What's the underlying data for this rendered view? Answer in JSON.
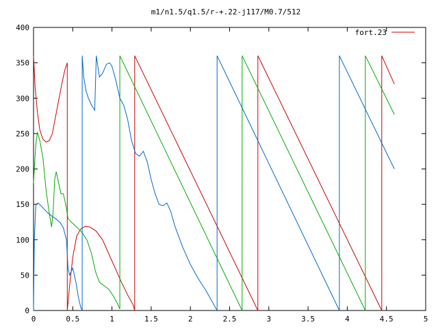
{
  "chart_data": {
    "type": "line",
    "title": "m1/n1.5/q1.5/r-+.22-j117/M0.7/512",
    "xlabel": "",
    "ylabel": "",
    "xlim": [
      0,
      5
    ],
    "ylim": [
      0,
      400
    ],
    "grid": false,
    "legend_position": "top-right",
    "xticks": [
      0,
      0.5,
      1,
      1.5,
      2,
      2.5,
      3,
      3.5,
      4,
      4.5,
      5
    ],
    "xtick_labels": [
      "0",
      "0.5",
      "1",
      "1.5",
      "2",
      "2.5",
      "3",
      "3.5",
      "4",
      "4.5",
      "5"
    ],
    "yticks": [
      0,
      50,
      100,
      150,
      200,
      250,
      300,
      350,
      400
    ],
    "ytick_labels": [
      "0",
      "50",
      "100",
      "150",
      "200",
      "250",
      "300",
      "350",
      "400"
    ],
    "series": [
      {
        "name": "fort.23",
        "color": "#cc0000",
        "points": [
          [
            0,
            360
          ],
          [
            0.02,
            315
          ],
          [
            0.05,
            280
          ],
          [
            0.08,
            255
          ],
          [
            0.12,
            242
          ],
          [
            0.16,
            238
          ],
          [
            0.2,
            240
          ],
          [
            0.24,
            250
          ],
          [
            0.3,
            285
          ],
          [
            0.36,
            320
          ],
          [
            0.4,
            340
          ],
          [
            0.43,
            350
          ],
          [
            0.43,
            0
          ],
          [
            0.46,
            35
          ],
          [
            0.5,
            75
          ],
          [
            0.55,
            105
          ],
          [
            0.6,
            115
          ],
          [
            0.66,
            119
          ],
          [
            0.72,
            118
          ],
          [
            0.8,
            112
          ],
          [
            0.88,
            100
          ],
          [
            0.96,
            80
          ],
          [
            1.04,
            60
          ],
          [
            1.12,
            40
          ],
          [
            1.2,
            22
          ],
          [
            1.27,
            8
          ],
          [
            1.29,
            0
          ],
          [
            1.29,
            360
          ],
          [
            2.86,
            0
          ],
          [
            2.86,
            360
          ],
          [
            4.44,
            0
          ],
          [
            4.44,
            360
          ],
          [
            4.6,
            320
          ]
        ]
      },
      {
        "name": "",
        "color": "#00aa00",
        "points": [
          [
            0,
            180
          ],
          [
            0.01,
            200
          ],
          [
            0.03,
            235
          ],
          [
            0.05,
            252
          ],
          [
            0.08,
            240
          ],
          [
            0.12,
            215
          ],
          [
            0.16,
            170
          ],
          [
            0.2,
            138
          ],
          [
            0.23,
            118
          ],
          [
            0.25,
            140
          ],
          [
            0.27,
            185
          ],
          [
            0.29,
            196
          ],
          [
            0.32,
            180
          ],
          [
            0.35,
            165
          ],
          [
            0.38,
            165
          ],
          [
            0.41,
            150
          ],
          [
            0.44,
            130
          ],
          [
            0.48,
            125
          ],
          [
            0.55,
            118
          ],
          [
            0.62,
            110
          ],
          [
            0.68,
            100
          ],
          [
            0.74,
            80
          ],
          [
            0.79,
            55
          ],
          [
            0.84,
            40
          ],
          [
            0.9,
            35
          ],
          [
            0.96,
            30
          ],
          [
            1.02,
            20
          ],
          [
            1.07,
            10
          ],
          [
            1.1,
            2
          ],
          [
            1.1,
            360
          ],
          [
            2.66,
            0
          ],
          [
            2.66,
            360
          ],
          [
            4.23,
            0
          ],
          [
            4.23,
            360
          ],
          [
            4.6,
            277
          ]
        ]
      },
      {
        "name": "",
        "color": "#0066cc",
        "points": [
          [
            0,
            0
          ],
          [
            0.01,
            100
          ],
          [
            0.03,
            150
          ],
          [
            0.06,
            152
          ],
          [
            0.12,
            145
          ],
          [
            0.18,
            138
          ],
          [
            0.24,
            133
          ],
          [
            0.3,
            128
          ],
          [
            0.34,
            124
          ],
          [
            0.38,
            117
          ],
          [
            0.42,
            100
          ],
          [
            0.44,
            60
          ],
          [
            0.46,
            50
          ],
          [
            0.5,
            60
          ],
          [
            0.54,
            40
          ],
          [
            0.57,
            20
          ],
          [
            0.6,
            5
          ],
          [
            0.62,
            0
          ],
          [
            0.62,
            360
          ],
          [
            0.64,
            330
          ],
          [
            0.67,
            310
          ],
          [
            0.7,
            300
          ],
          [
            0.74,
            290
          ],
          [
            0.78,
            283
          ],
          [
            0.8,
            360
          ],
          [
            0.84,
            330
          ],
          [
            0.88,
            335
          ],
          [
            0.93,
            348
          ],
          [
            0.97,
            350
          ],
          [
            1.0,
            345
          ],
          [
            1.05,
            325
          ],
          [
            1.1,
            300
          ],
          [
            1.15,
            290
          ],
          [
            1.2,
            270
          ],
          [
            1.25,
            240
          ],
          [
            1.3,
            222
          ],
          [
            1.35,
            218
          ],
          [
            1.4,
            225
          ],
          [
            1.45,
            210
          ],
          [
            1.5,
            185
          ],
          [
            1.55,
            165
          ],
          [
            1.6,
            150
          ],
          [
            1.65,
            148
          ],
          [
            1.7,
            152
          ],
          [
            1.75,
            140
          ],
          [
            1.8,
            120
          ],
          [
            1.9,
            90
          ],
          [
            2.0,
            65
          ],
          [
            2.1,
            45
          ],
          [
            2.2,
            28
          ],
          [
            2.3,
            8
          ],
          [
            2.34,
            0
          ],
          [
            2.34,
            360
          ],
          [
            3.9,
            0
          ],
          [
            3.9,
            360
          ],
          [
            4.6,
            200
          ]
        ]
      }
    ]
  }
}
